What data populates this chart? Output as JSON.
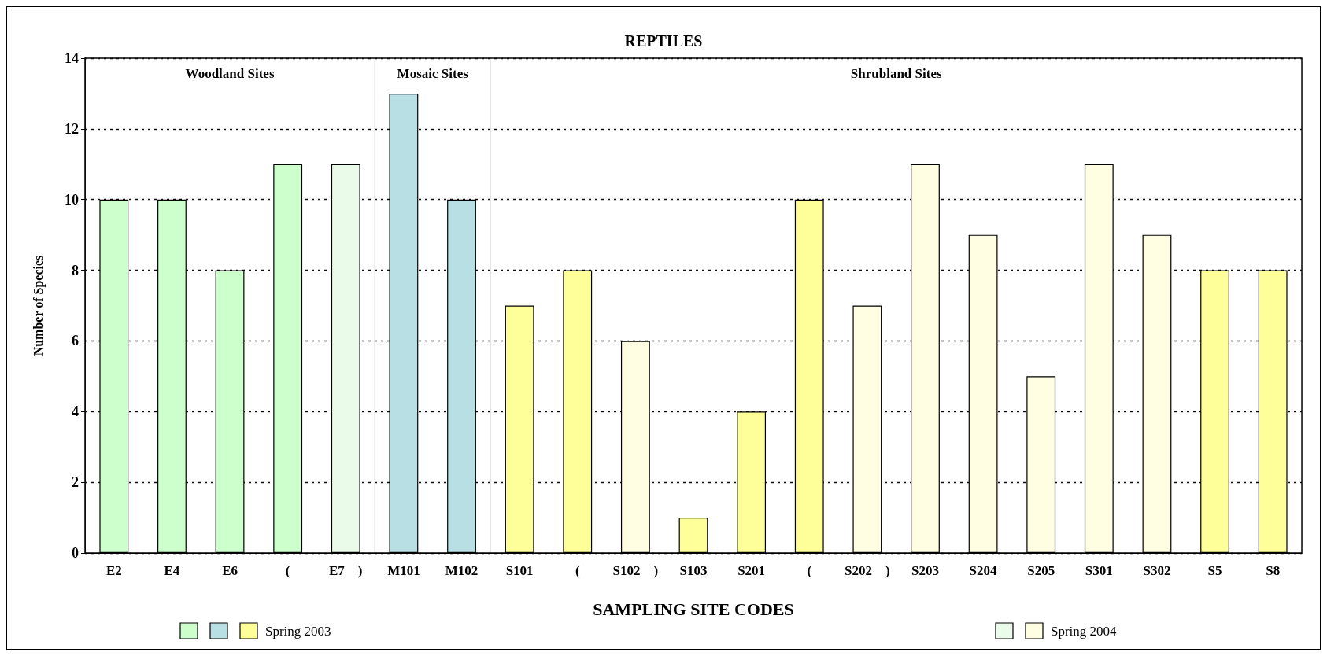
{
  "chart_data": {
    "type": "bar",
    "title": "REPTILES",
    "xlabel": "SAMPLING SITE CODES",
    "ylabel": "Number of Species",
    "categories": [
      "E2",
      "E4",
      "E6",
      "(",
      "E7    )",
      "M101",
      "M102",
      "S101",
      "(",
      "S102    )",
      "S103",
      "S201",
      "(",
      "S202    )",
      "S203",
      "S204",
      "S205",
      "S301",
      "S302",
      "S5",
      "S8"
    ],
    "series": [
      {
        "name": "Spring 2003",
        "values": [
          10,
          10,
          8,
          11,
          null,
          13,
          10,
          7,
          8,
          null,
          1,
          4,
          10,
          null,
          null,
          null,
          null,
          null,
          null,
          8,
          8
        ],
        "colors": [
          "#ccffcc",
          "#ccffcc",
          "#ccffcc",
          "#ccffcc",
          null,
          "#b8e0e4",
          "#b8e0e4",
          "#ffff99",
          "#ffff99",
          null,
          "#ffff99",
          "#ffff99",
          "#ffff99",
          null,
          null,
          null,
          null,
          null,
          null,
          "#ffff99",
          "#ffff99"
        ]
      },
      {
        "name": "Spring 2004",
        "values": [
          null,
          null,
          null,
          null,
          11,
          null,
          null,
          null,
          null,
          6,
          null,
          null,
          null,
          7,
          11,
          9,
          5,
          11,
          9,
          null,
          null
        ],
        "colors": [
          null,
          null,
          null,
          null,
          "#eafbea",
          null,
          null,
          null,
          null,
          "#fffde2",
          null,
          null,
          null,
          "#fffde2",
          "#fffde2",
          "#fffde2",
          "#fffde2",
          "#fffde2",
          "#fffde2",
          null,
          null
        ]
      }
    ],
    "bands": [
      {
        "axis": "x",
        "from": "E2",
        "to": "E7    )",
        "label": "Woodland Sites"
      },
      {
        "axis": "x",
        "from": "M101",
        "to": "M102",
        "label": "Mosaic Sites"
      },
      {
        "axis": "x",
        "from": "S101",
        "to": "S8",
        "label": "Shrubland Sites"
      }
    ],
    "ylim": [
      0,
      14
    ],
    "yticks": [
      0,
      2,
      4,
      6,
      8,
      10,
      12,
      14
    ],
    "grid": "y",
    "legend": "bottom"
  }
}
